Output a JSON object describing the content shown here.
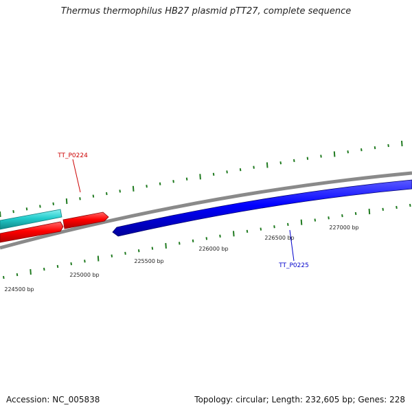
{
  "title": "Thermus thermophilus HB27 plasmid pTT27, complete sequence",
  "footer": {
    "accession": "Accession: NC_005838",
    "topology": "Topology: circular; Length: 232,605 bp; Genes: 228"
  },
  "colors": {
    "backbone": "#8a8a8a",
    "tick": "#1f7a1f",
    "forward_gene": "#ff0000",
    "reverse_gene": "#0000ff",
    "other_gene": "#22cccc"
  },
  "scale_labels": [
    "224500 bp",
    "225000 bp",
    "225500 bp",
    "226000 bp",
    "226500 bp",
    "227000 bp"
  ],
  "genes": [
    {
      "label": "TT_P0224",
      "color": "#cc0000"
    },
    {
      "label": "TT_P0225",
      "color": "#0000cc"
    }
  ]
}
